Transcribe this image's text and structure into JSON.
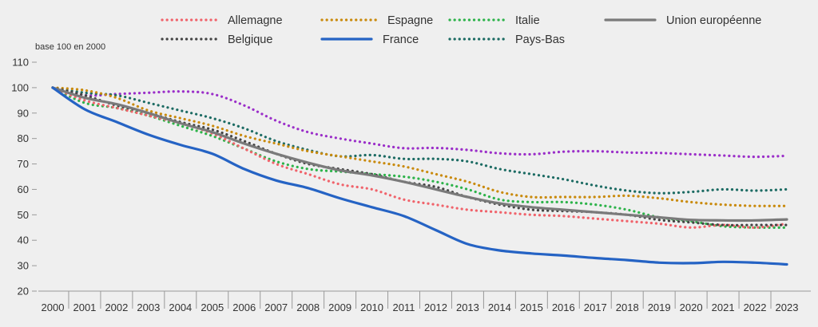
{
  "chart_data": {
    "type": "line",
    "title": "",
    "unit_label": "base 100 en 2000",
    "xlabel": "",
    "ylabel": "",
    "ylim": [
      20,
      110
    ],
    "yticks": [
      20,
      30,
      40,
      50,
      60,
      70,
      80,
      90,
      100,
      110
    ],
    "grid": false,
    "legend_position": "top",
    "x": [
      "2000",
      "2001",
      "2002",
      "2003",
      "2004",
      "2005",
      "2006",
      "2007",
      "2008",
      "2009",
      "2010",
      "2011",
      "2012",
      "2013",
      "2014",
      "2015",
      "2016",
      "2017",
      "2018",
      "2019",
      "2020",
      "2021",
      "2022",
      "2023"
    ],
    "series": [
      {
        "name": "Allemagne",
        "color": "#f0636b",
        "style": "dotted",
        "values": [
          100,
          95,
          92,
          89,
          86,
          82,
          76,
          70,
          66,
          62,
          60,
          56,
          54,
          52,
          51,
          50,
          49.5,
          48.5,
          47.5,
          46.5,
          45,
          46,
          45,
          46.5
        ]
      },
      {
        "name": "Espagne",
        "color": "#c98a0c",
        "style": "dotted",
        "values": [
          100,
          99,
          96,
          91,
          88,
          85,
          81,
          78,
          75,
          73,
          71,
          69,
          66,
          63,
          59,
          57,
          57,
          57,
          57.5,
          56.5,
          55,
          54,
          53.5,
          53.5
        ]
      },
      {
        "name": "Italie",
        "color": "#2db34a",
        "style": "dotted",
        "values": [
          100,
          94,
          92,
          89,
          85,
          81,
          76,
          71,
          68,
          67,
          66,
          65,
          63,
          60,
          56,
          55,
          55,
          54,
          52,
          49,
          47.5,
          45.5,
          45,
          45
        ]
      },
      {
        "name": "Union européenne",
        "color": "#7a7a7a",
        "style": "solid",
        "values": [
          100,
          96,
          93.5,
          90,
          86,
          82.5,
          78,
          74,
          70.5,
          67.5,
          65.5,
          63,
          60,
          57,
          54.5,
          53,
          52,
          51,
          50,
          49,
          48,
          47.8,
          47.8,
          48.2
        ]
      },
      {
        "name": "Belgique",
        "color": "#444444",
        "style": "dotted",
        "values": [
          100,
          97,
          93,
          90,
          86.5,
          83.5,
          79,
          74,
          70,
          68,
          66,
          63,
          61,
          57,
          54,
          52,
          51.5,
          51,
          50,
          48,
          47,
          46,
          46,
          46
        ]
      },
      {
        "name": "France",
        "color": "#2563c4",
        "style": "solid",
        "values": [
          100,
          91.5,
          86.5,
          81.5,
          77.5,
          74,
          68,
          63.5,
          60.5,
          56.5,
          53,
          49.5,
          44,
          38.5,
          36,
          34.8,
          34,
          33,
          32.2,
          31.2,
          31,
          31.5,
          31.2,
          30.5
        ]
      },
      {
        "name": "Pays-Bas",
        "color": "#1c6b63",
        "style": "dotted",
        "values": [
          100,
          98,
          97,
          94,
          91,
          88,
          84,
          79,
          75.5,
          73,
          73.5,
          72,
          72,
          71,
          68,
          66,
          64,
          61.5,
          59.5,
          58.5,
          59,
          60,
          59.5,
          60
        ]
      },
      {
        "name": "__ext_purple",
        "color": "#9b2fc9",
        "style": "dotted",
        "legend": false,
        "values": [
          100,
          97,
          97.5,
          98,
          98.5,
          97.5,
          93,
          87,
          82.5,
          80,
          78,
          76.2,
          76.3,
          75.5,
          74.2,
          73.8,
          74.8,
          75,
          74.5,
          74.3,
          73.8,
          73.3,
          72.8,
          73.2
        ]
      }
    ]
  }
}
